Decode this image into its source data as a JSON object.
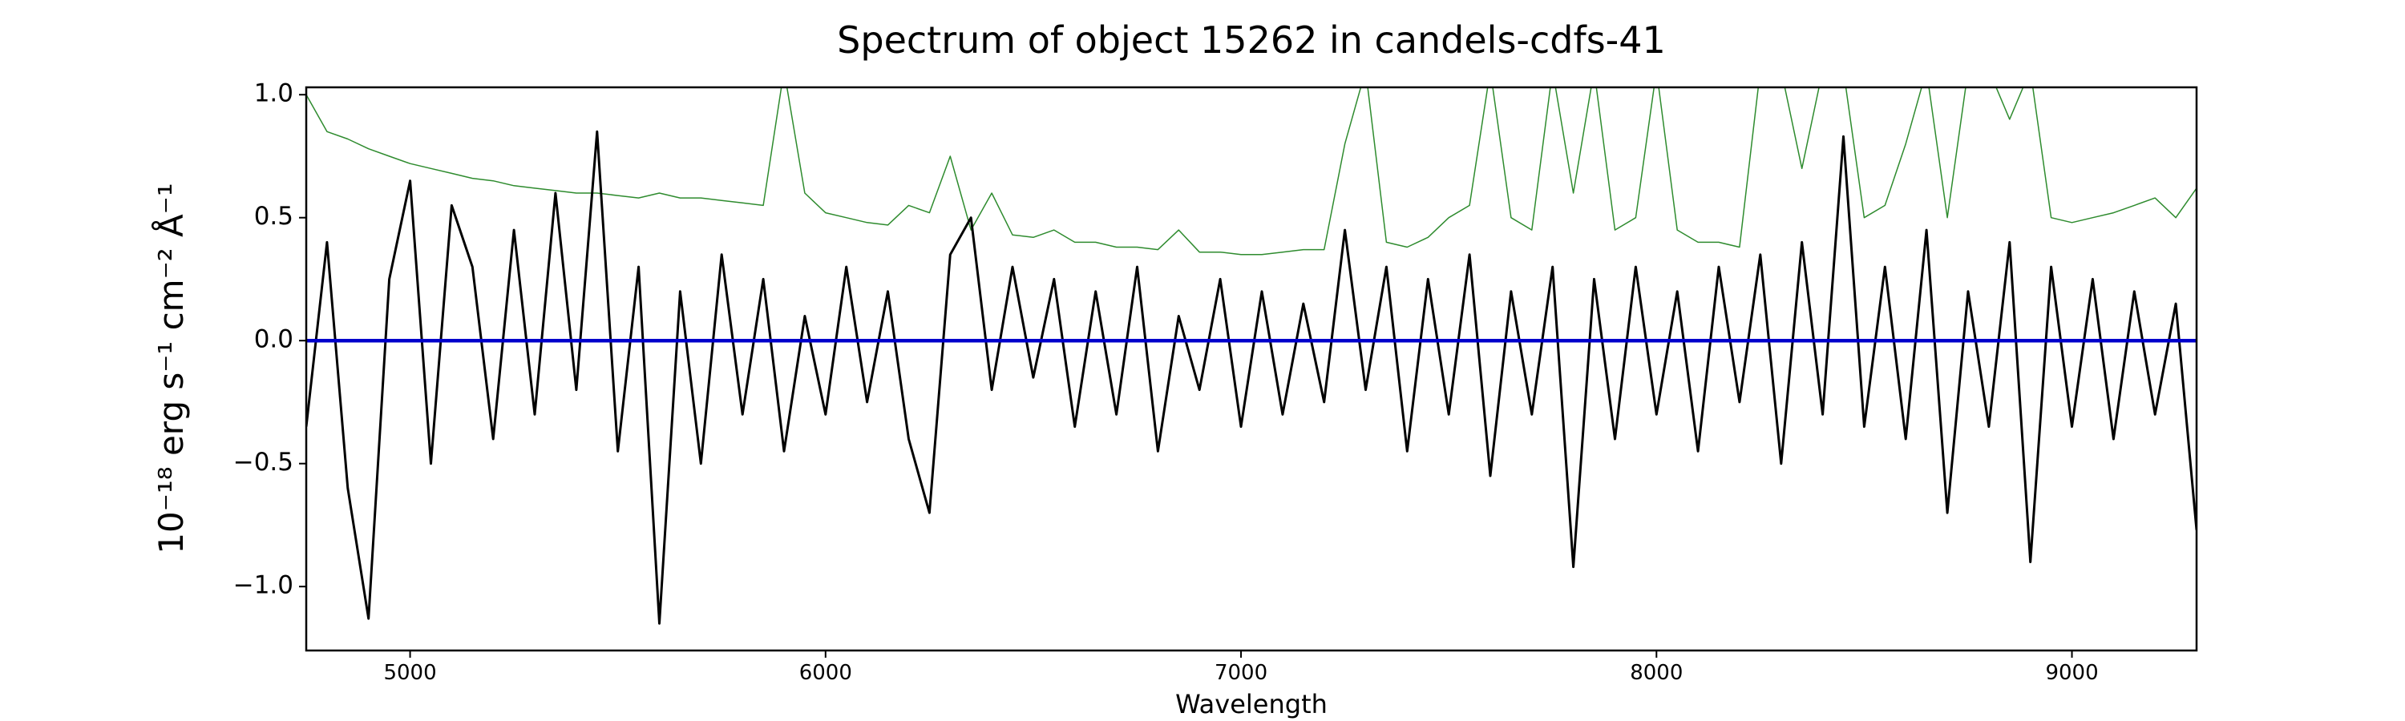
{
  "chart_data": {
    "type": "line",
    "title": "Spectrum of object 15262 in candels-cdfs-41",
    "x_label": "Wavelength",
    "y_label": "10⁻¹⁸ erg s⁻¹ cm⁻² Å⁻¹",
    "xlim": [
      4750,
      9300
    ],
    "ylim": [
      -1.26,
      1.03
    ],
    "xticks": [
      5000,
      6000,
      7000,
      8000,
      9000
    ],
    "yticks": [
      {
        "value": -1,
        "label": "−1.0"
      },
      {
        "value": -0.5,
        "label": "−0.5"
      },
      {
        "value": 0,
        "label": "0.0"
      },
      0.5,
      {
        "value": 1,
        "label": "1.0"
      }
    ],
    "series": [
      {
        "color": "#2e8b2e",
        "x": [
          4750,
          4800,
          4850,
          4900,
          4950,
          5000,
          5050,
          5100,
          5150,
          5200,
          5250,
          5300,
          5350,
          5400,
          5450,
          5500,
          5550,
          5600,
          5650,
          5700,
          5750,
          5800,
          5850,
          5900,
          5950,
          6000,
          6050,
          6100,
          6150,
          6200,
          6250,
          6300,
          6350,
          6400,
          6450,
          6500,
          6550,
          6600,
          6650,
          6700,
          6750,
          6800,
          6850,
          6900,
          6950,
          7000,
          7050,
          7100,
          7150,
          7200,
          7250,
          7300,
          7350,
          7400,
          7450,
          7500,
          7550,
          7600,
          7650,
          7700,
          7750,
          7800,
          7850,
          7900,
          7950,
          8000,
          8050,
          8100,
          8150,
          8200,
          8250,
          8300,
          8350,
          8400,
          8450,
          8500,
          8550,
          8600,
          8650,
          8700,
          8750,
          8800,
          8850,
          8900,
          8950,
          9000,
          9050,
          9100,
          9150,
          9200,
          9250,
          9300
        ],
        "values": [
          1.0,
          0.85,
          0.82,
          0.78,
          0.75,
          0.72,
          0.7,
          0.68,
          0.66,
          0.65,
          0.63,
          0.62,
          0.61,
          0.6,
          0.6,
          0.59,
          0.58,
          0.6,
          0.58,
          0.58,
          0.57,
          0.56,
          0.55,
          1.1,
          0.6,
          0.52,
          0.5,
          0.48,
          0.47,
          0.55,
          0.52,
          0.75,
          0.45,
          0.6,
          0.43,
          0.42,
          0.45,
          0.4,
          0.4,
          0.38,
          0.38,
          0.37,
          0.45,
          0.36,
          0.36,
          0.35,
          0.35,
          0.36,
          0.37,
          0.37,
          0.8,
          1.1,
          0.4,
          0.38,
          0.42,
          0.5,
          0.55,
          1.1,
          0.5,
          0.45,
          1.1,
          0.6,
          1.1,
          0.45,
          0.5,
          1.1,
          0.45,
          0.4,
          0.4,
          0.38,
          1.1,
          1.1,
          0.7,
          1.1,
          1.1,
          0.5,
          0.55,
          0.8,
          1.1,
          0.5,
          1.1,
          1.1,
          0.9,
          1.1,
          0.5,
          0.48,
          0.5,
          0.52,
          0.55,
          0.58,
          0.5,
          0.62
        ]
      },
      {
        "color": "#000000",
        "x": [
          4750,
          4800,
          4850,
          4900,
          4950,
          5000,
          5050,
          5100,
          5150,
          5200,
          5250,
          5300,
          5350,
          5400,
          5450,
          5500,
          5550,
          5600,
          5650,
          5700,
          5750,
          5800,
          5850,
          5900,
          5950,
          6000,
          6050,
          6100,
          6150,
          6200,
          6250,
          6300,
          6350,
          6400,
          6450,
          6500,
          6550,
          6600,
          6650,
          6700,
          6750,
          6800,
          6850,
          6900,
          6950,
          7000,
          7050,
          7100,
          7150,
          7200,
          7250,
          7300,
          7350,
          7400,
          7450,
          7500,
          7550,
          7600,
          7650,
          7700,
          7750,
          7800,
          7850,
          7900,
          7950,
          8000,
          8050,
          8100,
          8150,
          8200,
          8250,
          8300,
          8350,
          8400,
          8450,
          8500,
          8550,
          8600,
          8650,
          8700,
          8750,
          8800,
          8850,
          8900,
          8950,
          9000,
          9050,
          9100,
          9150,
          9200,
          9250,
          9300
        ],
        "values": [
          -0.35,
          0.4,
          -0.6,
          -1.13,
          0.25,
          0.65,
          -0.5,
          0.55,
          0.3,
          -0.4,
          0.45,
          -0.3,
          0.6,
          -0.2,
          0.85,
          -0.45,
          0.3,
          -1.15,
          0.2,
          -0.5,
          0.35,
          -0.3,
          0.25,
          -0.45,
          0.1,
          -0.3,
          0.3,
          -0.25,
          0.2,
          -0.4,
          -0.7,
          0.35,
          0.5,
          -0.2,
          0.3,
          -0.15,
          0.25,
          -0.35,
          0.2,
          -0.3,
          0.3,
          -0.45,
          0.1,
          -0.2,
          0.25,
          -0.35,
          0.2,
          -0.3,
          0.15,
          -0.25,
          0.45,
          -0.2,
          0.3,
          -0.45,
          0.25,
          -0.3,
          0.35,
          -0.55,
          0.2,
          -0.3,
          0.3,
          -0.92,
          0.25,
          -0.4,
          0.3,
          -0.3,
          0.2,
          -0.45,
          0.3,
          -0.25,
          0.35,
          -0.5,
          0.4,
          -0.3,
          0.83,
          -0.35,
          0.3,
          -0.4,
          0.45,
          -0.7,
          0.2,
          -0.35,
          0.4,
          -0.9,
          0.3,
          -0.35,
          0.25,
          -0.4,
          0.2,
          -0.3,
          0.15,
          -0.77
        ]
      },
      {
        "color": "#0000cc",
        "x": [
          4750,
          9300
        ],
        "values": [
          0,
          0
        ]
      }
    ]
  }
}
